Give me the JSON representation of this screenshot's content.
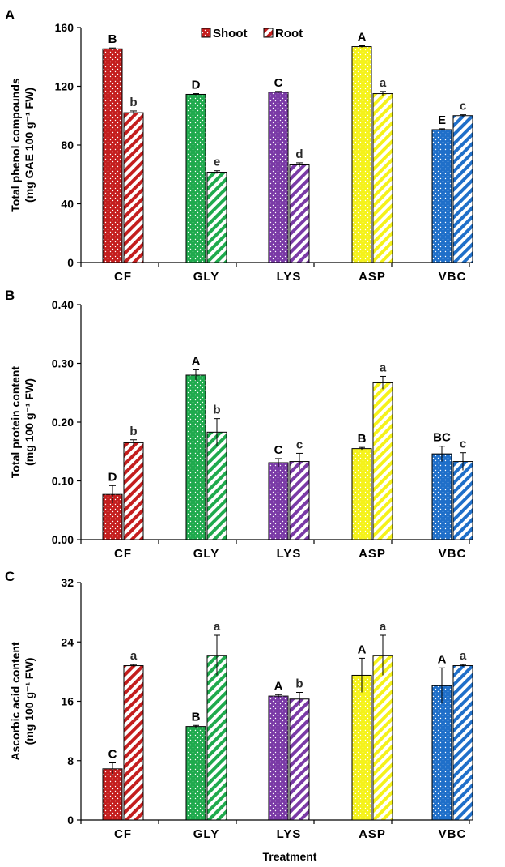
{
  "legend": {
    "items": [
      "Shoot",
      "Root"
    ]
  },
  "categories": [
    "CF",
    "GLY",
    "LYS",
    "ASP",
    "VBC"
  ],
  "colors": {
    "CF": "#c41e1e",
    "GLY": "#1faa4d",
    "LYS": "#7a3aa6",
    "ASP": "#f5f21a",
    "VBC": "#1f6fc9"
  },
  "x_title": "Treatment",
  "chart_data": [
    {
      "type": "bar",
      "panel": "A",
      "ylabel_line1": "Total phenol compounds",
      "ylabel_line2": "(mg GAE 100 g⁻¹ FW)",
      "ylim": [
        0,
        160
      ],
      "yticks": [
        "0",
        "40",
        "80",
        "120",
        "160"
      ],
      "categories": [
        "CF",
        "GLY",
        "LYS",
        "ASP",
        "VBC"
      ],
      "series": [
        {
          "name": "Shoot",
          "values": [
            145.5,
            114.5,
            116,
            147,
            90.5
          ],
          "errors": [
            0.6,
            0.5,
            0.5,
            0.6,
            0.6
          ],
          "letters": [
            "B",
            "D",
            "C",
            "A",
            "E"
          ]
        },
        {
          "name": "Root",
          "values": [
            102,
            61.5,
            66.5,
            115,
            100
          ],
          "errors": [
            1.2,
            1.0,
            1.4,
            1.5,
            0.6
          ],
          "letters": [
            "b",
            "e",
            "d",
            "a",
            "c"
          ]
        }
      ]
    },
    {
      "type": "bar",
      "panel": "B",
      "ylabel_line1": "Total protein content",
      "ylabel_line2": "(mg 100 g⁻¹ FW)",
      "ylim": [
        0,
        0.4
      ],
      "yticks": [
        "0.00",
        "0.10",
        "0.20",
        "0.30",
        "0.40"
      ],
      "categories": [
        "CF",
        "GLY",
        "LYS",
        "ASP",
        "VBC"
      ],
      "series": [
        {
          "name": "Shoot",
          "values": [
            0.077,
            0.28,
            0.131,
            0.155,
            0.146
          ],
          "errors": [
            0.015,
            0.009,
            0.007,
            0.002,
            0.013
          ],
          "letters": [
            "D",
            "A",
            "C",
            "B",
            "BC"
          ]
        },
        {
          "name": "Root",
          "values": [
            0.165,
            0.183,
            0.133,
            0.267,
            0.133
          ],
          "errors": [
            0.005,
            0.023,
            0.014,
            0.011,
            0.015
          ],
          "letters": [
            "b",
            "b",
            "c",
            "a",
            "c"
          ]
        }
      ]
    },
    {
      "type": "bar",
      "panel": "C",
      "ylabel_line1": "Ascorbic  acid content",
      "ylabel_line2": "(mg 100 g⁻¹ FW)",
      "ylim": [
        0,
        32
      ],
      "yticks": [
        "0",
        "8",
        "16",
        "24",
        "32"
      ],
      "categories": [
        "CF",
        "GLY",
        "LYS",
        "ASP",
        "VBC"
      ],
      "series": [
        {
          "name": "Shoot",
          "values": [
            6.9,
            12.6,
            16.7,
            19.5,
            18.1
          ],
          "errors": [
            0.8,
            0.15,
            0.2,
            2.3,
            2.4
          ],
          "letters": [
            "C",
            "B",
            "A",
            "A",
            "A"
          ]
        },
        {
          "name": "Root",
          "values": [
            20.8,
            22.2,
            16.3,
            22.2,
            20.8
          ],
          "errors": [
            0.15,
            2.7,
            0.9,
            2.7,
            0.15
          ],
          "letters": [
            "a",
            "a",
            "b",
            "a",
            "a"
          ]
        }
      ]
    }
  ]
}
